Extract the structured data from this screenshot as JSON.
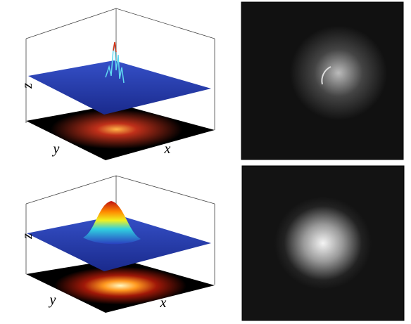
{
  "panels": [
    {
      "axis_labels": {
        "z": "z",
        "y": "y",
        "x": "x"
      }
    },
    {
      "axis_labels": {
        "z": "z",
        "y": "y",
        "x": "x"
      }
    }
  ]
}
